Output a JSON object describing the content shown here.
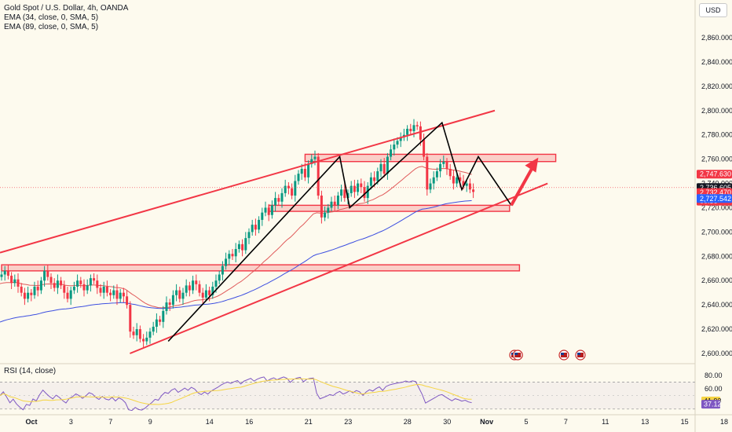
{
  "legend": {
    "title": "Gold Spot / U.S. Dollar, 4h, OANDA",
    "ema1": "EMA (34, close, 0, SMA, 5)",
    "ema2": "EMA (89, close, 0, SMA, 5)"
  },
  "currency_label": "USD",
  "rsi_label": "RSI (14, close)",
  "colors": {
    "background": "#fdfaee",
    "bull": "#089981",
    "bear": "#f23645",
    "ema34": "#e05a5a",
    "ema89": "#3d4fe0",
    "pattern": "#f23645",
    "zigzag": "#000000",
    "rsi": "#7e57c2",
    "rsi_ma": "#f5d442"
  },
  "chart_data": {
    "type": "candlestick",
    "instrument": "Gold Spot / U.S. Dollar",
    "timeframe": "4h",
    "ylim": [
      2600,
      2870
    ],
    "y_ticks": [
      2600,
      2620,
      2640,
      2660,
      2680,
      2700,
      2720,
      2740,
      2760,
      2780,
      2800,
      2820,
      2840,
      2860
    ],
    "y_tick_labels": [
      "2,600.000",
      "2,620.000",
      "2,640.000",
      "2,660.000",
      "2,680.000",
      "2,700.000",
      "2,720.000",
      "2,740.000",
      "2,760.000",
      "2,780.000",
      "2,800.000",
      "2,820.000",
      "2,840.000",
      "2,860.000"
    ],
    "x_ticks": [
      {
        "label": "Oct",
        "x": 0
      },
      {
        "label": "3",
        "x": 12
      },
      {
        "label": "7",
        "x": 24
      },
      {
        "label": "9",
        "x": 36
      },
      {
        "label": "14",
        "x": 54
      },
      {
        "label": "16",
        "x": 66
      },
      {
        "label": "21",
        "x": 84
      },
      {
        "label": "23",
        "x": 96
      },
      {
        "label": "28",
        "x": 114
      },
      {
        "label": "30",
        "x": 126
      },
      {
        "label": "Nov",
        "x": 138
      },
      {
        "label": "5",
        "x": 150
      },
      {
        "label": "7",
        "x": 162
      },
      {
        "label": "11",
        "x": 174
      },
      {
        "label": "13",
        "x": 186
      },
      {
        "label": "15",
        "x": 198
      },
      {
        "label": "18",
        "x": 210
      }
    ],
    "price_tags": [
      {
        "value": 2747.63,
        "label": "2,747.630",
        "color": "#f23645"
      },
      {
        "value": 2736.605,
        "label": "2,736.605",
        "color": "#131722"
      },
      {
        "value": 2732.47,
        "label": "2,732.470",
        "color": "#f23645"
      },
      {
        "label": "00:36",
        "color": "#f23645",
        "below": 2732.47
      },
      {
        "value": 2727.542,
        "label": "2,727.542",
        "color": "#2962ff"
      }
    ],
    "closes": [
      2665,
      2668,
      2664,
      2658,
      2661,
      2655,
      2650,
      2645,
      2650,
      2648,
      2655,
      2652,
      2660,
      2668,
      2663,
      2658,
      2654,
      2660,
      2656,
      2650,
      2645,
      2652,
      2655,
      2660,
      2657,
      2652,
      2656,
      2662,
      2660,
      2654,
      2650,
      2655,
      2650,
      2648,
      2652,
      2645,
      2650,
      2647,
      2640,
      2618,
      2615,
      2620,
      2612,
      2610,
      2613,
      2618,
      2622,
      2628,
      2626,
      2635,
      2642,
      2640,
      2648,
      2652,
      2645,
      2650,
      2656,
      2652,
      2660,
      2657,
      2650,
      2646,
      2652,
      2648,
      2655,
      2660,
      2665,
      2672,
      2678,
      2682,
      2680,
      2686,
      2690,
      2685,
      2695,
      2700,
      2706,
      2702,
      2710,
      2716,
      2720,
      2714,
      2722,
      2728,
      2725,
      2732,
      2738,
      2736,
      2730,
      2742,
      2748,
      2752,
      2745,
      2756,
      2760,
      2762,
      2730,
      2712,
      2716,
      2720,
      2725,
      2722,
      2730,
      2735,
      2728,
      2732,
      2738,
      2733,
      2740,
      2737,
      2728,
      2738,
      2745,
      2742,
      2750,
      2756,
      2748,
      2762,
      2768,
      2772,
      2775,
      2778,
      2780,
      2785,
      2783,
      2788,
      2787,
      2776,
      2762,
      2735,
      2740,
      2745,
      2750,
      2756,
      2758,
      2752,
      2746,
      2740,
      2745,
      2742,
      2738,
      2740,
      2735,
      2733
    ],
    "ema34_approx": "rises from ~2655 (Oct 9) to ~2747 (Nov 1), flattening ~2745",
    "ema89_approx": "rises from ~2620 (Oct 1) to ~2727 (Nov 5)",
    "channel": {
      "upper": [
        {
          "x": 0,
          "y": 2683
        },
        {
          "x": 150,
          "y": 2800
        }
      ],
      "lower": [
        {
          "x": 37,
          "y": 2600
        },
        {
          "x": 166,
          "y": 2740
        }
      ]
    },
    "zones": [
      {
        "from_x": 92,
        "to_x": 168,
        "low": 2758,
        "high": 2764
      },
      {
        "from_x": 81,
        "to_x": 154,
        "low": 2717,
        "high": 2722
      },
      {
        "from_x": 0,
        "to_x": 157,
        "low": 2668,
        "high": 2673
      }
    ],
    "zigzag": [
      {
        "x": 51,
        "y": 2610
      },
      {
        "x": 103,
        "y": 2762
      },
      {
        "x": 106,
        "y": 2720
      },
      {
        "x": 134,
        "y": 2790
      },
      {
        "x": 140,
        "y": 2735
      },
      {
        "x": 145,
        "y": 2762
      },
      {
        "x": 155,
        "y": 2722
      }
    ],
    "arrow": {
      "from": {
        "x": 155,
        "y": 2722
      },
      "to": {
        "x": 162,
        "y": 2760
      }
    },
    "event_markers_x": [
      155,
      156,
      170,
      175
    ],
    "rsi": {
      "ylim": [
        25,
        95
      ],
      "levels": [
        30,
        70
      ],
      "tick_labels": [
        {
          "value": 80,
          "label": "80.00"
        },
        {
          "value": 60,
          "label": "60.00"
        }
      ],
      "value_tags": [
        {
          "value": 41.93,
          "label": "41.93",
          "color": "#f5d442"
        },
        {
          "value": 37.12,
          "label": "37.12",
          "color": "#7e57c2"
        }
      ]
    }
  }
}
